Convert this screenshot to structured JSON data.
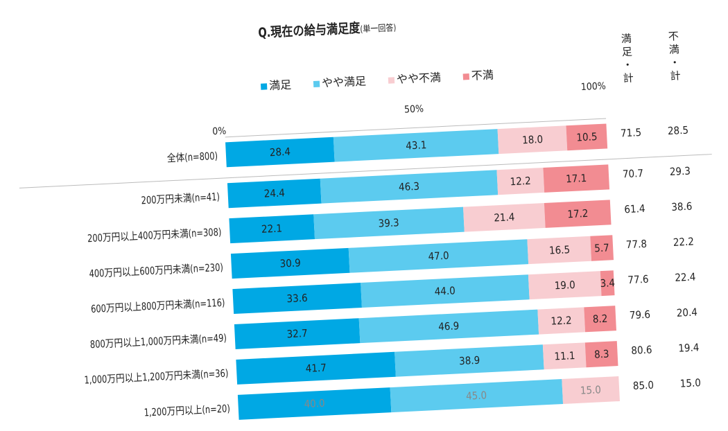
{
  "title": "Q.現在の給与満足度",
  "title_note": "(単一回答)",
  "totals_headers": [
    "満足・計",
    "不満・計"
  ],
  "chart_data": {
    "type": "bar",
    "orientation": "horizontal",
    "stacked": true,
    "title": "Q.現在の給与満足度(単一回答)",
    "x_ticks": [
      "0%",
      "50%",
      "100%"
    ],
    "xlim": [
      0,
      100
    ],
    "legend_position": "top",
    "categories": [
      "全体(n=800)",
      "200万円未満(n=41)",
      "200万円以上400万円未満(n=308)",
      "400万円以上600万円未満(n=230)",
      "600万円以上800万円未満(n=116)",
      "800万円以上1,000万円未満(n=49)",
      "1,000万円以上1,200万円未満(n=36)",
      "1,200万円以上(n=20)"
    ],
    "series": [
      {
        "name": "満足",
        "color": "#00a8e4",
        "values": [
          28.4,
          24.4,
          22.1,
          30.9,
          33.6,
          32.7,
          41.7,
          40.0
        ]
      },
      {
        "name": "やや満足",
        "color": "#5ccbef",
        "values": [
          43.1,
          46.3,
          39.3,
          47.0,
          44.0,
          46.9,
          38.9,
          45.0
        ]
      },
      {
        "name": "やや不満",
        "color": "#f8cdd1",
        "values": [
          18.0,
          12.2,
          21.4,
          16.5,
          19.0,
          12.2,
          11.1,
          15.0
        ]
      },
      {
        "name": "不満",
        "color": "#f28c92",
        "values": [
          10.5,
          17.1,
          17.2,
          5.7,
          3.4,
          8.2,
          8.3,
          0
        ]
      }
    ],
    "satisfied_total": [
      "71.5",
      "70.7",
      "61.4",
      "77.8",
      "77.6",
      "79.6",
      "80.6",
      "85.0"
    ],
    "dissatisfied_total": [
      "28.5",
      "29.3",
      "38.6",
      "22.2",
      "22.4",
      "20.4",
      "19.4",
      "15.0"
    ]
  }
}
